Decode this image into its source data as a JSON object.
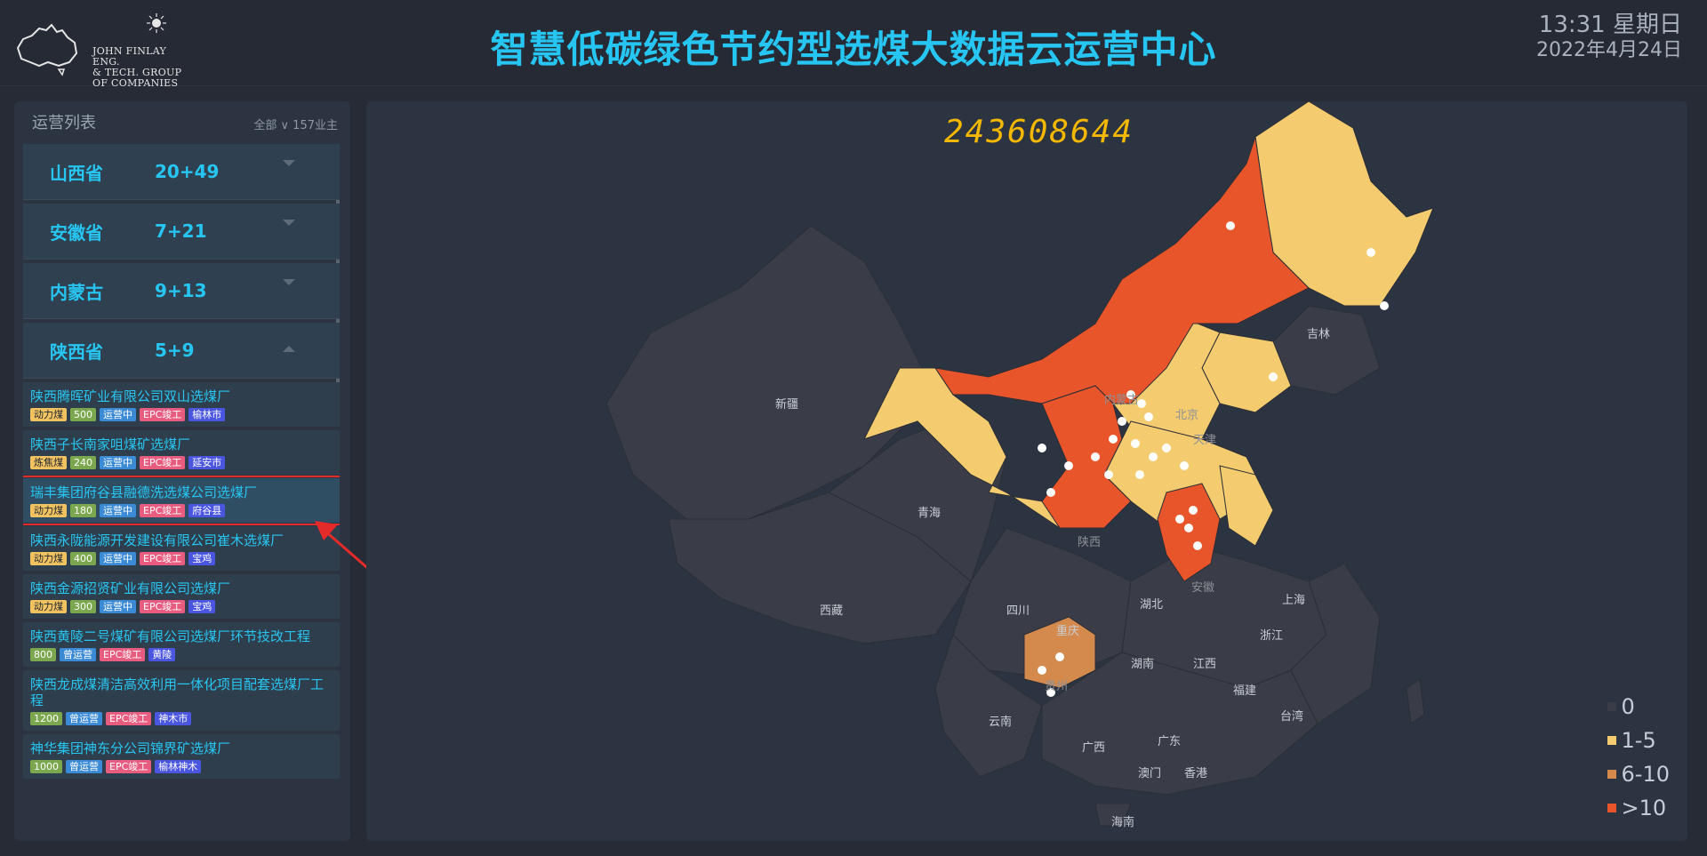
{
  "header": {
    "logo_text_line1": "JOHN FINLAY ENG.",
    "logo_text_line2": "& TECH. GROUP OF COMPANIES",
    "title": "智慧低碳绿色节约型选煤大数据云运营中心",
    "time": "13:31 星期日",
    "date": "2022年4月24日"
  },
  "sidebar": {
    "title": "运营列表",
    "filter_label": "全部",
    "owner_count": "157业主",
    "provinces": [
      {
        "name": "山西省",
        "count": "20+49",
        "expanded": false
      },
      {
        "name": "安徽省",
        "count": "7+21",
        "expanded": false
      },
      {
        "name": "内蒙古",
        "count": "9+13",
        "expanded": false
      },
      {
        "name": "陕西省",
        "count": "5+9",
        "expanded": true
      }
    ],
    "items": [
      {
        "name": "陕西腾晖矿业有限公司双山选煤厂",
        "tags": [
          "动力煤",
          "500",
          "运营中",
          "EPC竣工",
          "榆林市"
        ]
      },
      {
        "name": "陕西子长南家咀煤矿选煤厂",
        "tags": [
          "炼焦煤",
          "240",
          "运营中",
          "EPC竣工",
          "延安市"
        ]
      },
      {
        "name": "瑞丰集团府谷县融德洗选煤公司选煤厂",
        "tags": [
          "动力煤",
          "180",
          "运营中",
          "EPC竣工",
          "府谷县"
        ]
      },
      {
        "name": "陕西永陇能源开发建设有限公司崔木选煤厂",
        "tags": [
          "动力煤",
          "400",
          "运营中",
          "EPC竣工",
          "宝鸡"
        ]
      },
      {
        "name": "陕西金源招贤矿业有限公司选煤厂",
        "tags": [
          "动力煤",
          "300",
          "运营中",
          "EPC竣工",
          "宝鸡"
        ]
      },
      {
        "name": "陕西黄陵二号煤矿有限公司选煤厂环节技改工程",
        "tags": [
          "800",
          "曾运营",
          "EPC竣工",
          "黄陵"
        ]
      },
      {
        "name": "陕西龙成煤清洁高效利用一体化项目配套选煤厂工程",
        "tags": [
          "1200",
          "曾运营",
          "EPC竣工",
          "神木市"
        ]
      },
      {
        "name": "神华集团神东分公司锦界矿选煤厂",
        "tags": [
          "1000",
          "曾运营",
          "EPC竣工",
          "榆林神木"
        ]
      }
    ]
  },
  "map": {
    "counter": "243608644",
    "labels": [
      "新疆",
      "青海",
      "西藏",
      "四川",
      "内蒙古",
      "陕西",
      "安徽",
      "吉林",
      "北京",
      "天津",
      "湖北",
      "重庆",
      "湖南",
      "江西",
      "浙江",
      "上海",
      "福建",
      "台湾",
      "云南",
      "广西",
      "广东",
      "澳门",
      "香港",
      "海南",
      "贵州"
    ],
    "legend": [
      {
        "label": "0",
        "color": "#3a3d47"
      },
      {
        "label": "1-5",
        "color": "#f4cc6f"
      },
      {
        "label": "6-10",
        "color": "#d58a4d"
      },
      {
        "label": ">10",
        "color": "#e8552a"
      }
    ]
  }
}
